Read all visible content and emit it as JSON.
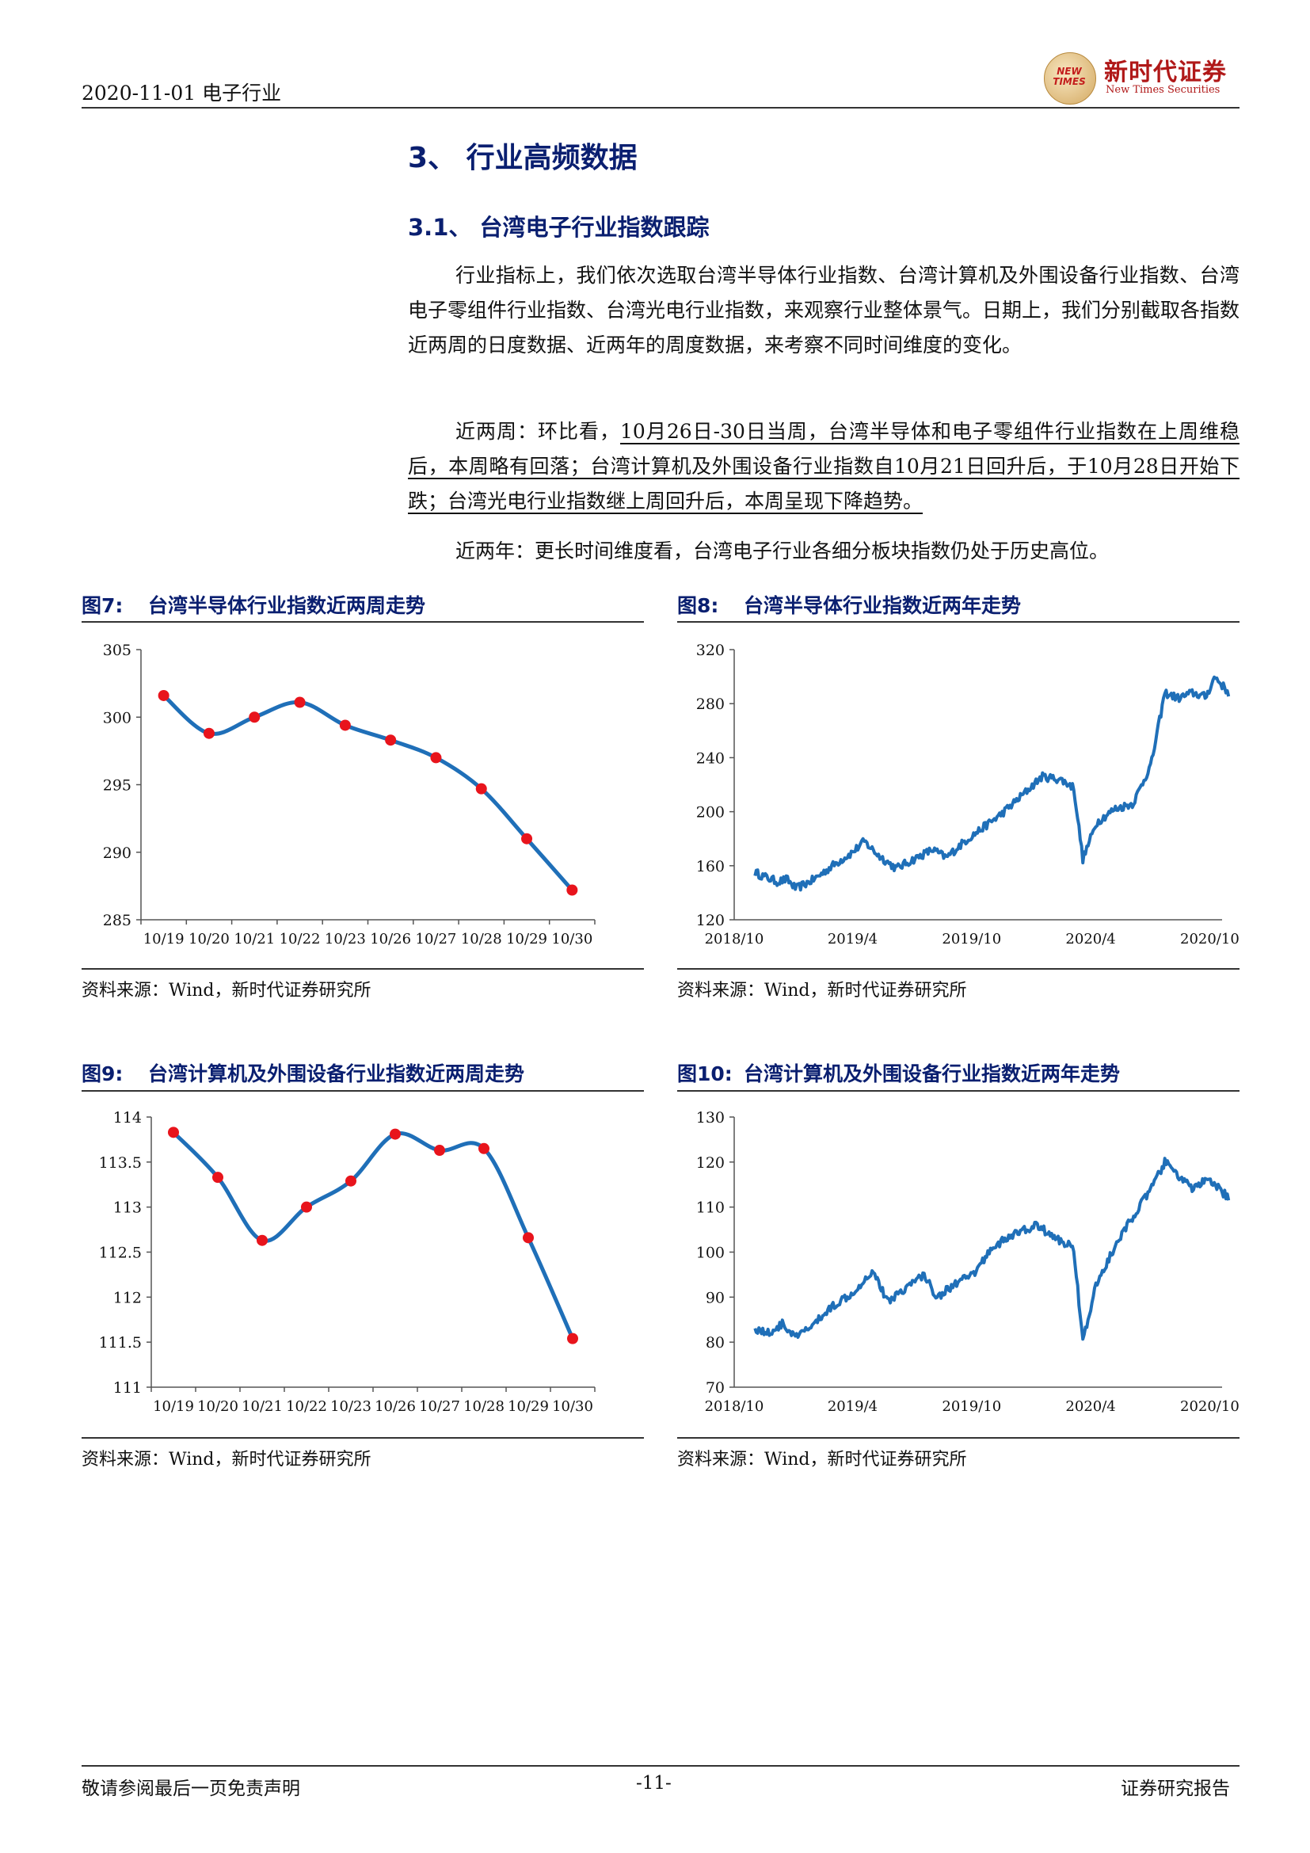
{
  "header": {
    "date_industry": "2020-11-01 电子行业",
    "logo_badge": "NEW TIMES",
    "logo_cn": "新时代证券",
    "logo_en": "New Times Securities"
  },
  "section": {
    "heading": "3、 行业高频数据",
    "subheading": "3.1、 台湾电子行业指数跟踪",
    "para1": "行业指标上，我们依次选取台湾半导体行业指数、台湾计算机及外围设备行业指数、台湾电子零组件行业指数、台湾光电行业指数，来观察行业整体景气。日期上，我们分别截取各指数近两周的日度数据、近两年的周度数据，来考察不同时间维度的变化。",
    "para2_lead": "近两周：环比看，",
    "para2_underlined": "10月26日-30日当周，台湾半导体和电子零组件行业指数在上周维稳后，本周略有回落；台湾计算机及外围设备行业指数自10月21日回升后，于10月28日开始下跌；台湾光电行业指数继上周回升后，本周呈现下降趋势。",
    "para3": "近两年：更长时间维度看，台湾电子行业各细分板块指数仍处于历史高位。"
  },
  "figures": [
    {
      "num": "图7:",
      "title": "台湾半导体行业指数近两周走势",
      "source": "资料来源：Wind，新时代证券研究所"
    },
    {
      "num": "图8:",
      "title": "台湾半导体行业指数近两年走势",
      "source": "资料来源：Wind，新时代证券研究所"
    },
    {
      "num": "图9:",
      "title": "台湾计算机及外围设备行业指数近两周走势",
      "source": "资料来源：Wind，新时代证券研究所"
    },
    {
      "num": "图10:",
      "title": "台湾计算机及外围设备行业指数近两年走势",
      "source": "资料来源：Wind，新时代证券研究所"
    }
  ],
  "chart_data": [
    {
      "type": "line",
      "x": [
        "10/19",
        "10/20",
        "10/21",
        "10/22",
        "10/23",
        "10/26",
        "10/27",
        "10/28",
        "10/29",
        "10/30"
      ],
      "values": [
        301.6,
        298.8,
        300.0,
        301.1,
        299.4,
        298.3,
        297.0,
        294.7,
        291.0,
        287.2
      ],
      "ylim": [
        285,
        305
      ],
      "yticks": [
        285,
        290,
        295,
        300,
        305
      ],
      "markers": true,
      "line_color": "#1f6fb8",
      "marker_color": "#e8141c"
    },
    {
      "type": "line",
      "x_tick_labels": [
        "2018/10",
        "2019/4",
        "2019/10",
        "2020/4",
        "2020/10"
      ],
      "x_range": [
        "2018-10",
        "2020-10"
      ],
      "anchors": [
        [
          "2018-11-02",
          155
        ],
        [
          "2018-11-16",
          152
        ],
        [
          "2018-12-07",
          148
        ],
        [
          "2018-12-21",
          150
        ],
        [
          "2019-01-04",
          143
        ],
        [
          "2019-02-01",
          150
        ],
        [
          "2019-03-01",
          160
        ],
        [
          "2019-04-01",
          170
        ],
        [
          "2019-04-19",
          178
        ],
        [
          "2019-05-10",
          168
        ],
        [
          "2019-06-07",
          158
        ],
        [
          "2019-07-05",
          165
        ],
        [
          "2019-08-02",
          172
        ],
        [
          "2019-08-23",
          166
        ],
        [
          "2019-09-20",
          178
        ],
        [
          "2019-10-18",
          188
        ],
        [
          "2019-11-15",
          198
        ],
        [
          "2019-12-13",
          210
        ],
        [
          "2020-01-17",
          226
        ],
        [
          "2020-02-14",
          224
        ],
        [
          "2020-03-06",
          218
        ],
        [
          "2020-03-20",
          165
        ],
        [
          "2020-04-10",
          192
        ],
        [
          "2020-05-08",
          202
        ],
        [
          "2020-06-05",
          206
        ],
        [
          "2020-07-03",
          235
        ],
        [
          "2020-07-24",
          288
        ],
        [
          "2020-08-14",
          284
        ],
        [
          "2020-09-04",
          288
        ],
        [
          "2020-09-25",
          285
        ],
        [
          "2020-10-09",
          300
        ],
        [
          "2020-10-30",
          288
        ]
      ],
      "ylim": [
        120,
        320
      ],
      "yticks": [
        120,
        160,
        200,
        240,
        280,
        320
      ],
      "line_color": "#1f6fb8"
    },
    {
      "type": "line",
      "x": [
        "10/19",
        "10/20",
        "10/21",
        "10/22",
        "10/23",
        "10/26",
        "10/27",
        "10/28",
        "10/29",
        "10/30"
      ],
      "values": [
        113.83,
        113.33,
        112.63,
        113.0,
        113.29,
        113.81,
        113.63,
        113.65,
        112.66,
        111.54
      ],
      "ylim": [
        111,
        114
      ],
      "yticks": [
        111,
        111.5,
        112,
        112.5,
        113,
        113.5,
        114
      ],
      "markers": true,
      "line_color": "#1f6fb8",
      "marker_color": "#e8141c"
    },
    {
      "type": "line",
      "x_tick_labels": [
        "2018/10",
        "2019/4",
        "2019/10",
        "2020/4",
        "2020/10"
      ],
      "x_range": [
        "2018-10",
        "2020-10"
      ],
      "anchors": [
        [
          "2018-11-02",
          83
        ],
        [
          "2018-11-23",
          82
        ],
        [
          "2018-12-14",
          84
        ],
        [
          "2019-01-04",
          81
        ],
        [
          "2019-02-01",
          84
        ],
        [
          "2019-03-01",
          88
        ],
        [
          "2019-04-01",
          91
        ],
        [
          "2019-05-03",
          96
        ],
        [
          "2019-05-24",
          89
        ],
        [
          "2019-06-21",
          92
        ],
        [
          "2019-07-19",
          95
        ],
        [
          "2019-08-09",
          90
        ],
        [
          "2019-09-06",
          93
        ],
        [
          "2019-10-04",
          95
        ],
        [
          "2019-11-01",
          101
        ],
        [
          "2019-12-06",
          104
        ],
        [
          "2020-01-10",
          106
        ],
        [
          "2020-02-07",
          103
        ],
        [
          "2020-03-06",
          101
        ],
        [
          "2020-03-20",
          80
        ],
        [
          "2020-04-10",
          93
        ],
        [
          "2020-05-08",
          101
        ],
        [
          "2020-06-05",
          108
        ],
        [
          "2020-07-03",
          114
        ],
        [
          "2020-07-24",
          120
        ],
        [
          "2020-08-14",
          117
        ],
        [
          "2020-09-04",
          114
        ],
        [
          "2020-09-25",
          116
        ],
        [
          "2020-10-16",
          114
        ],
        [
          "2020-10-30",
          112
        ]
      ],
      "ylim": [
        70,
        130
      ],
      "yticks": [
        70,
        80,
        90,
        100,
        110,
        120,
        130
      ],
      "line_color": "#1f6fb8"
    }
  ],
  "footer": {
    "left": "敬请参阅最后一页免责声明",
    "center": "-11-",
    "right": "证券研究报告"
  }
}
